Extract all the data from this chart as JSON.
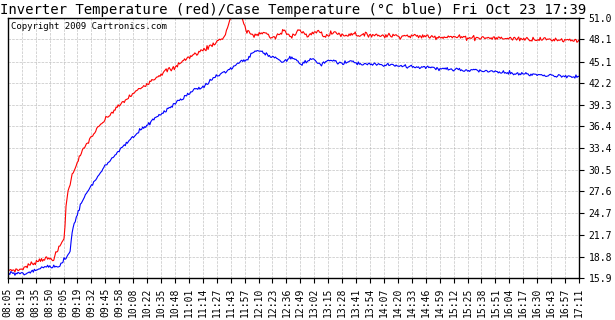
{
  "title": "Inverter Temperature (red)/Case Temperature (°C blue) Fri Oct 23 17:39",
  "copyright": "Copyright 2009 Cartronics.com",
  "yticks": [
    15.9,
    18.8,
    21.7,
    24.7,
    27.6,
    30.5,
    33.4,
    36.4,
    39.3,
    42.2,
    45.1,
    48.1,
    51.0
  ],
  "xtick_labels": [
    "08:05",
    "08:19",
    "08:35",
    "08:50",
    "09:05",
    "09:19",
    "09:32",
    "09:45",
    "09:58",
    "10:08",
    "10:22",
    "10:35",
    "10:48",
    "11:01",
    "11:14",
    "11:27",
    "11:43",
    "11:57",
    "12:10",
    "12:23",
    "12:36",
    "12:49",
    "13:02",
    "13:15",
    "13:28",
    "13:41",
    "13:54",
    "14:07",
    "14:20",
    "14:33",
    "14:46",
    "14:59",
    "15:12",
    "15:25",
    "15:38",
    "15:51",
    "16:04",
    "16:17",
    "16:30",
    "16:43",
    "16:57",
    "17:11"
  ],
  "ymin": 15.9,
  "ymax": 51.0,
  "bg_color": "#ffffff",
  "plot_bg_color": "#ffffff",
  "grid_color": "#aaaaaa",
  "red_color": "#ff0000",
  "blue_color": "#0000ff",
  "title_fontsize": 10,
  "copyright_fontsize": 6.5,
  "tick_fontsize": 7
}
